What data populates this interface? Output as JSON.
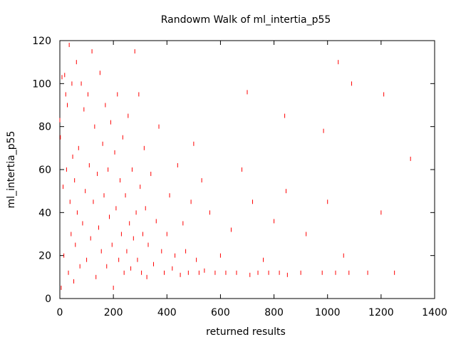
{
  "chart_data": {
    "type": "scatter",
    "title": "Randowm Walk of ml_intertia_p55",
    "xlabel": "returned results",
    "ylabel": "ml_intertia_p55",
    "xlim": [
      0,
      1400
    ],
    "ylim": [
      0,
      120
    ],
    "x_ticks": [
      "0",
      "200",
      "400",
      "600",
      "800",
      "1000",
      "1200",
      "1400"
    ],
    "y_ticks": [
      "0",
      "20",
      "40",
      "60",
      "80",
      "100",
      "120"
    ],
    "grid": false,
    "legend": "none",
    "marker": "vertical-dash",
    "color": "#ff0000",
    "series": [
      {
        "x": [
          0,
          2,
          5,
          8,
          12,
          15,
          18,
          22,
          25,
          28,
          32,
          35,
          38,
          42,
          45,
          48,
          52,
          55,
          58,
          62,
          65,
          70,
          75,
          80,
          85,
          90,
          95,
          100,
          105,
          110,
          115,
          120,
          125,
          130,
          135,
          140,
          145,
          150,
          155,
          160,
          165,
          170,
          175,
          180,
          185,
          190,
          195,
          200,
          205,
          210,
          215,
          220,
          225,
          230,
          235,
          240,
          245,
          250,
          255,
          260,
          265,
          270,
          275,
          280,
          285,
          290,
          295,
          300,
          305,
          310,
          315,
          320,
          325,
          330,
          340,
          350,
          360,
          370,
          380,
          390,
          400,
          410,
          420,
          430,
          440,
          450,
          460,
          470,
          480,
          490,
          500,
          510,
          520,
          530,
          540,
          560,
          580,
          600,
          620,
          640,
          660,
          680,
          700,
          710,
          720,
          740,
          760,
          780,
          800,
          820,
          840,
          845,
          850,
          900,
          920,
          980,
          985,
          1000,
          1030,
          1040,
          1060,
          1080,
          1090,
          1150,
          1200,
          1210,
          1250,
          1310
        ],
        "y": [
          83,
          75,
          5,
          103,
          52,
          20,
          104,
          95,
          60,
          90,
          12,
          118,
          45,
          30,
          100,
          66,
          8,
          55,
          25,
          110,
          40,
          70,
          15,
          100,
          35,
          88,
          50,
          18,
          95,
          62,
          28,
          115,
          45,
          80,
          10,
          58,
          33,
          105,
          22,
          72,
          48,
          90,
          15,
          60,
          38,
          82,
          25,
          5,
          68,
          42,
          95,
          18,
          55,
          30,
          75,
          12,
          48,
          22,
          85,
          35,
          14,
          60,
          28,
          115,
          40,
          18,
          95,
          52,
          12,
          30,
          70,
          42,
          10,
          25,
          58,
          16,
          36,
          80,
          22,
          12,
          30,
          48,
          14,
          20,
          62,
          11,
          35,
          22,
          12,
          45,
          72,
          18,
          12,
          55,
          13,
          40,
          12,
          20,
          12,
          32,
          12,
          60,
          96,
          11,
          45,
          12,
          18,
          12,
          36,
          12,
          85,
          50,
          11,
          12,
          30,
          12,
          78,
          45,
          12,
          110,
          20,
          12,
          100,
          12,
          40,
          95,
          12,
          65
        ]
      }
    ]
  }
}
